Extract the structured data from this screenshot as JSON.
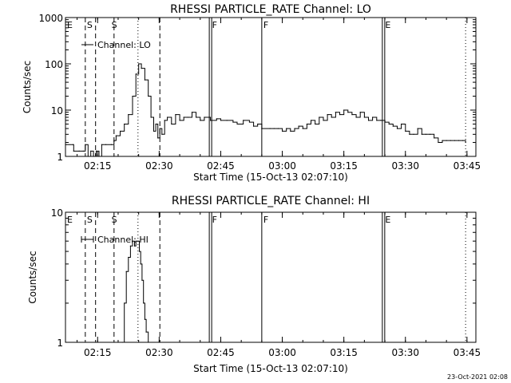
{
  "colors": {
    "background": "#ffffff",
    "foreground": "#000000"
  },
  "footer": {
    "timestamp": "23-Oct-2021 02:08"
  },
  "chart_data": [
    {
      "type": "line",
      "title": "RHESSI PARTICLE_RATE Channel: LO",
      "xlabel": "Start Time (15-Oct-13 02:07:10)",
      "ylabel": "Counts/sec",
      "y_scale": "log",
      "ylim": [
        1,
        1000
      ],
      "xlim": [
        "02:07:10",
        "03:47:10"
      ],
      "x_ticks": [
        "02:15",
        "02:30",
        "02:45",
        "03:00",
        "03:15",
        "03:30",
        "03:45"
      ],
      "y_ticks": [
        "1",
        "10",
        "100",
        "1000"
      ],
      "legend": {
        "entries": [
          "Channel: LO"
        ],
        "placement": "top-left"
      },
      "grid": false,
      "flags": [
        {
          "label": "E",
          "time": "02:07:10"
        },
        {
          "label": "S",
          "time": "02:12:00"
        },
        {
          "label": "S",
          "time": "02:18:00"
        },
        {
          "label": "F",
          "time": "02:42:30"
        },
        {
          "label": "F",
          "time": "02:55:00"
        },
        {
          "label": "E",
          "time": "03:24:40"
        }
      ],
      "vlines": [
        {
          "time": "02:12:00",
          "style": "dashed"
        },
        {
          "time": "02:14:30",
          "style": "dashed"
        },
        {
          "time": "02:19:00",
          "style": "dashed"
        },
        {
          "time": "02:24:50",
          "style": "dotted"
        },
        {
          "time": "02:30:10",
          "style": "dashed"
        },
        {
          "time": "02:42:30",
          "style": "double"
        },
        {
          "time": "02:55:00",
          "style": "solid"
        },
        {
          "time": "03:24:40",
          "style": "double"
        },
        {
          "time": "03:44:40",
          "style": "dotted"
        }
      ],
      "series": [
        {
          "name": "Channel: LO",
          "x": [
            "02:07:10",
            "02:09:00",
            "02:09:10",
            "02:10:30",
            "02:11:30",
            "02:12:00",
            "02:12:40",
            "02:13:20",
            "02:14:00",
            "02:14:40",
            "02:15:20",
            "02:16:00",
            "02:17:00",
            "02:18:20",
            "02:19:00",
            "02:19:30",
            "02:20:30",
            "02:21:30",
            "02:22:30",
            "02:23:30",
            "02:24:20",
            "02:25:00",
            "02:25:40",
            "02:26:30",
            "02:27:20",
            "02:28:00",
            "02:28:40",
            "02:29:10",
            "02:29:40",
            "02:30:10",
            "02:30:40",
            "02:31:20",
            "02:32:00",
            "02:33:00",
            "02:34:00",
            "02:35:00",
            "02:36:00",
            "02:37:00",
            "02:38:00",
            "02:39:00",
            "02:40:00",
            "02:41:00",
            "02:42:30",
            "02:44:00",
            "02:45:00",
            "02:46:30",
            "02:48:00",
            "02:49:00",
            "02:50:30",
            "02:52:00",
            "02:53:00",
            "02:54:00",
            "02:55:00",
            "02:57:00",
            "02:58:00",
            "02:59:00",
            "03:00:00",
            "03:01:00",
            "03:02:00",
            "03:03:00",
            "03:04:00",
            "03:05:00",
            "03:06:00",
            "03:07:00",
            "03:08:00",
            "03:09:00",
            "03:10:00",
            "03:11:00",
            "03:12:00",
            "03:13:00",
            "03:14:00",
            "03:15:00",
            "03:16:00",
            "03:17:00",
            "03:18:00",
            "03:19:00",
            "03:20:00",
            "03:21:00",
            "03:22:00",
            "03:23:00",
            "03:24:00",
            "03:25:00",
            "03:26:00",
            "03:27:00",
            "03:28:00",
            "03:29:00",
            "03:30:00",
            "03:31:00",
            "03:32:00",
            "03:33:00",
            "03:34:00",
            "03:35:00",
            "03:36:00",
            "03:37:00",
            "03:38:00",
            "03:39:00",
            "03:40:00",
            "03:41:00",
            "03:42:00",
            "03:43:00",
            "03:44:00",
            "03:44:40"
          ],
          "y": [
            1.8,
            1.8,
            1.3,
            1.3,
            1.3,
            1.8,
            1.0,
            1.3,
            1.0,
            1.3,
            1.0,
            1.8,
            1.8,
            1.8,
            2.2,
            2.8,
            3.5,
            5,
            8,
            20,
            60,
            100,
            80,
            45,
            20,
            7,
            3.5,
            5,
            2.5,
            4,
            3,
            6,
            7,
            5,
            8,
            6,
            7,
            7,
            9,
            7,
            6,
            7,
            6,
            6.5,
            6,
            6,
            5.5,
            5,
            6,
            5.5,
            4.5,
            5,
            4,
            4,
            4,
            4,
            3.5,
            4,
            3.5,
            4,
            4.5,
            4,
            5,
            6,
            5,
            7,
            6,
            8,
            7,
            9,
            8,
            10,
            9,
            8,
            7,
            9,
            7,
            6,
            7,
            6,
            6,
            5.5,
            5,
            4.5,
            4,
            5,
            3.5,
            3,
            3,
            4,
            3,
            3,
            3,
            2.5,
            2,
            2.2,
            2.2,
            2.2,
            2.2,
            2.2,
            2.2,
            2
          ]
        }
      ]
    },
    {
      "type": "line",
      "title": "RHESSI PARTICLE_RATE Channel: HI",
      "xlabel": "Start Time (15-Oct-13 02:07:10)",
      "ylabel": "Counts/sec",
      "y_scale": "log",
      "ylim": [
        1,
        10
      ],
      "xlim": [
        "02:07:10",
        "03:47:10"
      ],
      "x_ticks": [
        "02:15",
        "02:30",
        "02:45",
        "03:00",
        "03:15",
        "03:30",
        "03:45"
      ],
      "y_ticks": [
        "1",
        "10"
      ],
      "legend": {
        "entries": [
          "Channel: HI"
        ],
        "placement": "top-left"
      },
      "grid": false,
      "flags": [
        {
          "label": "E",
          "time": "02:07:10"
        },
        {
          "label": "S",
          "time": "02:12:00"
        },
        {
          "label": "S",
          "time": "02:18:00"
        },
        {
          "label": "F",
          "time": "02:42:30"
        },
        {
          "label": "F",
          "time": "02:55:00"
        },
        {
          "label": "E",
          "time": "03:24:40"
        }
      ],
      "vlines": [
        {
          "time": "02:12:00",
          "style": "dashed"
        },
        {
          "time": "02:14:30",
          "style": "dashed"
        },
        {
          "time": "02:19:00",
          "style": "dashed"
        },
        {
          "time": "02:24:50",
          "style": "dotted"
        },
        {
          "time": "02:30:10",
          "style": "dashed"
        },
        {
          "time": "02:42:30",
          "style": "double"
        },
        {
          "time": "02:55:00",
          "style": "solid"
        },
        {
          "time": "03:24:40",
          "style": "double"
        },
        {
          "time": "03:44:40",
          "style": "dotted"
        }
      ],
      "series": [
        {
          "name": "Channel: HI",
          "x": [
            "02:21:00",
            "02:21:30",
            "02:22:00",
            "02:22:30",
            "02:23:00",
            "02:23:30",
            "02:24:00",
            "02:24:20",
            "02:24:50",
            "02:25:10",
            "02:25:30",
            "02:25:50",
            "02:26:10",
            "02:26:30",
            "02:26:50",
            "02:27:20"
          ],
          "y": [
            1.0,
            2.0,
            3.5,
            4.5,
            5.5,
            6.0,
            5.5,
            6.0,
            6.0,
            5.0,
            4.0,
            3.0,
            2.0,
            1.5,
            1.2,
            1.0
          ]
        }
      ]
    }
  ]
}
